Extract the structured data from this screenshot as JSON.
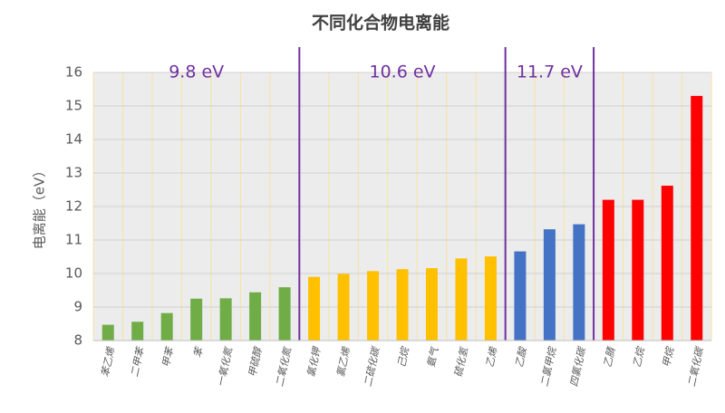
{
  "chart_data": {
    "type": "bar",
    "title": "不同化合物电离能",
    "y_label": "电离能（eV）",
    "categories": [
      "苯乙烯",
      "二甲苯",
      "甲苯",
      "苯",
      "一氧化氮",
      "甲硫醇",
      "二氧化氮",
      "氯化钾",
      "氯乙烯",
      "二硫化碳",
      "己烷",
      "氨气",
      "硫化氢",
      "乙烯",
      "乙酸",
      "二氯甲烷",
      "四氯化碳",
      "乙腈",
      "乙烷",
      "甲烷",
      "二氧化碳"
    ],
    "values": [
      8.47,
      8.56,
      8.82,
      9.25,
      9.26,
      9.44,
      9.59,
      9.9,
      9.99,
      10.07,
      10.13,
      10.16,
      10.45,
      10.51,
      10.66,
      11.32,
      11.47,
      12.2,
      12.2,
      12.62,
      15.3
    ],
    "colors": [
      "#70ad47",
      "#70ad47",
      "#70ad47",
      "#70ad47",
      "#70ad47",
      "#70ad47",
      "#70ad47",
      "#ffc000",
      "#ffc000",
      "#ffc000",
      "#ffc000",
      "#ffc000",
      "#ffc000",
      "#ffc000",
      "#4472c4",
      "#4472c4",
      "#4472c4",
      "#ff0000",
      "#ff0000",
      "#ff0000",
      "#ff0000"
    ],
    "group_labels": [
      "9.8 eV",
      "10.6 eV",
      "11.7 eV"
    ],
    "ylim": [
      8,
      16
    ],
    "yticks": [
      8,
      9,
      10,
      11,
      12,
      13,
      14,
      15,
      16
    ],
    "grid": true
  }
}
